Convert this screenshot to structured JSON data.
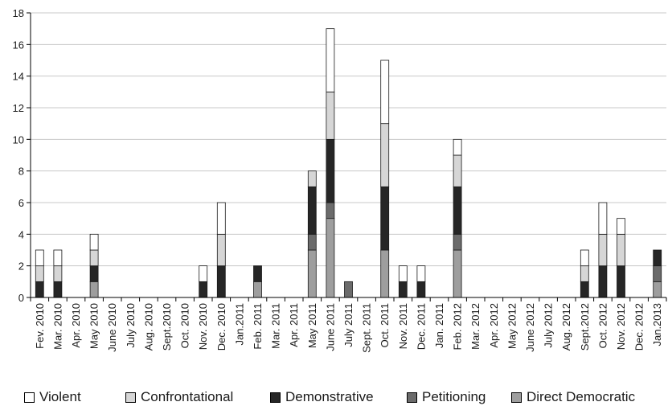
{
  "chart_data": {
    "type": "bar",
    "stacked": true,
    "title": "",
    "xlabel": "",
    "ylabel": "",
    "ylim": [
      0,
      18
    ],
    "yticks": [
      0,
      2,
      4,
      6,
      8,
      10,
      12,
      14,
      16,
      18
    ],
    "grid": "horizontal",
    "legend_position": "bottom",
    "categories": [
      "Fev. 2010",
      "Mar. 2010",
      "Apr. 2010",
      "May 2010",
      "June 2010",
      "July 2010",
      "Aug. 2010",
      "Sept.2010",
      "Oct. 2010",
      "Nov. 2010",
      "Dec. 2010",
      "Jan.2011",
      "Feb. 2011",
      "Mar. 2011",
      "Apr. 2011",
      "May 2011",
      "June 2011",
      "July 2011",
      "Sept. 2011",
      "Oct. 2011",
      "Nov. 2011",
      "Dec. 2011",
      "Jan. 2011",
      "Feb. 2012",
      "Mar. 2012",
      "Apr. 2012",
      "May 2012",
      "June 2012",
      "July 2012",
      "Aug. 2012",
      "Sept.2012",
      "Oct. 2012",
      "Nov. 2012",
      "Dec. 2012",
      "Jan.2013"
    ],
    "series": [
      {
        "name": "Direct Democratic",
        "color": "#9e9e9e",
        "values": [
          0,
          0,
          0,
          1,
          0,
          0,
          0,
          0,
          0,
          0,
          0,
          0,
          1,
          0,
          0,
          3,
          5,
          0,
          0,
          3,
          0,
          0,
          0,
          3,
          0,
          0,
          0,
          0,
          0,
          0,
          0,
          0,
          0,
          0,
          1
        ]
      },
      {
        "name": "Petitioning",
        "color": "#6b6b6b",
        "values": [
          0,
          0,
          0,
          0,
          0,
          0,
          0,
          0,
          0,
          0,
          0,
          0,
          0,
          0,
          0,
          1,
          1,
          1,
          0,
          0,
          0,
          0,
          0,
          1,
          0,
          0,
          0,
          0,
          0,
          0,
          0,
          0,
          0,
          0,
          1
        ]
      },
      {
        "name": "Demonstrative",
        "color": "#262626",
        "values": [
          1,
          1,
          0,
          1,
          0,
          0,
          0,
          0,
          0,
          1,
          2,
          0,
          1,
          0,
          0,
          3,
          4,
          0,
          0,
          4,
          1,
          1,
          0,
          3,
          0,
          0,
          0,
          0,
          0,
          0,
          1,
          2,
          2,
          0,
          1
        ]
      },
      {
        "name": "Confrontational",
        "color": "#d6d6d6",
        "values": [
          1,
          1,
          0,
          1,
          0,
          0,
          0,
          0,
          0,
          0,
          2,
          0,
          0,
          0,
          0,
          1,
          3,
          0,
          0,
          4,
          0,
          0,
          0,
          2,
          0,
          0,
          0,
          0,
          0,
          0,
          1,
          2,
          2,
          0,
          0
        ]
      },
      {
        "name": "Violent",
        "color": "#ffffff",
        "values": [
          1,
          1,
          0,
          1,
          0,
          0,
          0,
          0,
          0,
          1,
          2,
          0,
          0,
          0,
          0,
          0,
          4,
          0,
          0,
          4,
          1,
          1,
          0,
          1,
          0,
          0,
          0,
          0,
          0,
          0,
          1,
          2,
          1,
          0,
          0
        ]
      }
    ],
    "legend_order": [
      "Violent",
      "Confrontational",
      "Demonstrative",
      "Petitioning",
      "Direct Democratic"
    ]
  }
}
